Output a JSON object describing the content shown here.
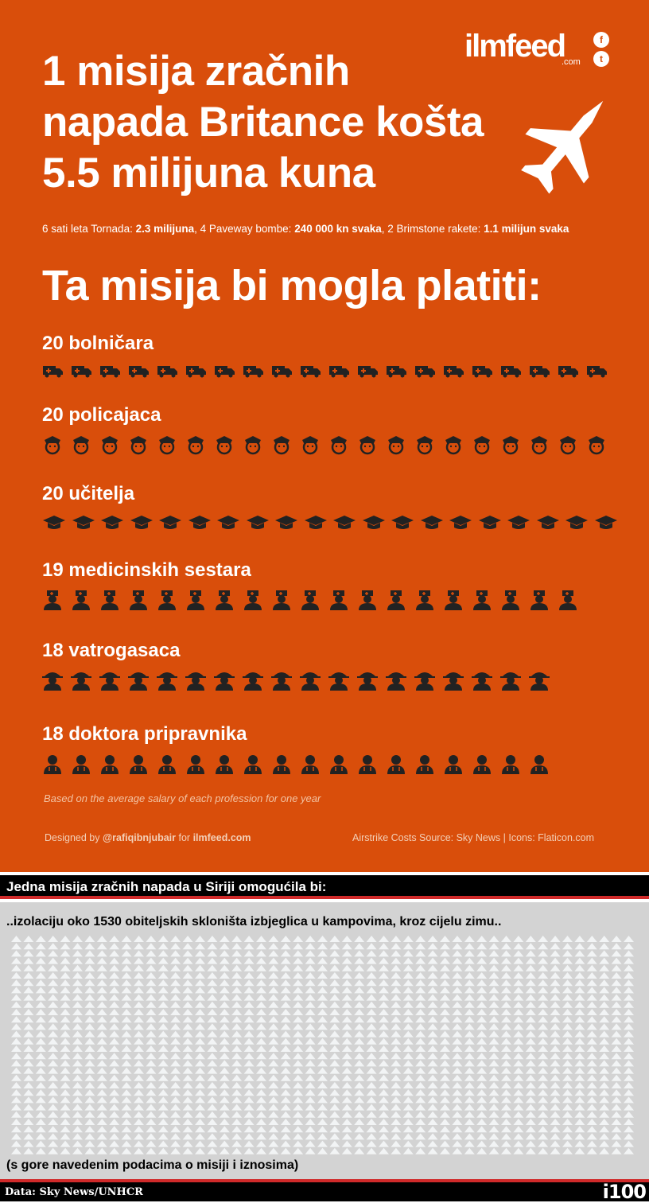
{
  "header": {
    "title_lines": [
      "1 misija zračnih",
      "napada Britance košta",
      "5.5 milijuna kuna"
    ],
    "logo": "ilmfeed",
    "logo_suffix": ".com",
    "social": [
      "facebook-icon",
      "twitter-icon"
    ]
  },
  "subtitle": {
    "p1": "6 sati leta Tornada: ",
    "b1": "2.3 milijuna",
    "p2": ", 4 Paveway bombe: ",
    "b2": "240 000 kn svaka",
    "p3": ", 2 Brimstone rakete: ",
    "b3": "1.1 milijun svaka"
  },
  "heading": "Ta misija bi mogla platiti:",
  "categories": [
    {
      "label": "20 bolničara",
      "count": 20,
      "icon": "ambulance-icon"
    },
    {
      "label": "20 policajaca",
      "count": 20,
      "icon": "police-officer-icon"
    },
    {
      "label": "20 učitelja",
      "count": 20,
      "icon": "graduation-cap-icon"
    },
    {
      "label": "19 medicinskih sestara",
      "count": 19,
      "icon": "nurse-icon"
    },
    {
      "label": "18 vatrogasaca",
      "count": 18,
      "icon": "firefighter-icon"
    },
    {
      "label": "18 doktora pripravnika",
      "count": 18,
      "icon": "doctor-icon"
    }
  ],
  "note": "Based on the average salary of each profession for one year",
  "credits": {
    "left_pre": "Designed by ",
    "left_handle": "@rafiqibnjubair",
    "left_mid": " for ",
    "left_site": "ilmfeed.com",
    "right": "Airstrike Costs Source: Sky News | Icons: Flaticon.com"
  },
  "syria": {
    "title": "Jedna misija zračnih napada u Siriji omogućila bi:",
    "text": "..izolaciju oko 1530 obiteljskih skloništa izbjeglica u kampovima, kroz cijelu zimu..",
    "tent_count": 1530,
    "tent_icon": "tent-icon",
    "footnote": "(s gore navedenim podacima o misiji i iznosima)"
  },
  "footer": {
    "data": "Data: Sky News/UNHCR",
    "logo": "i100"
  },
  "colors": {
    "orange": "#d94e0b",
    "gray": "#d3d3d3",
    "red": "#d02a2a"
  }
}
